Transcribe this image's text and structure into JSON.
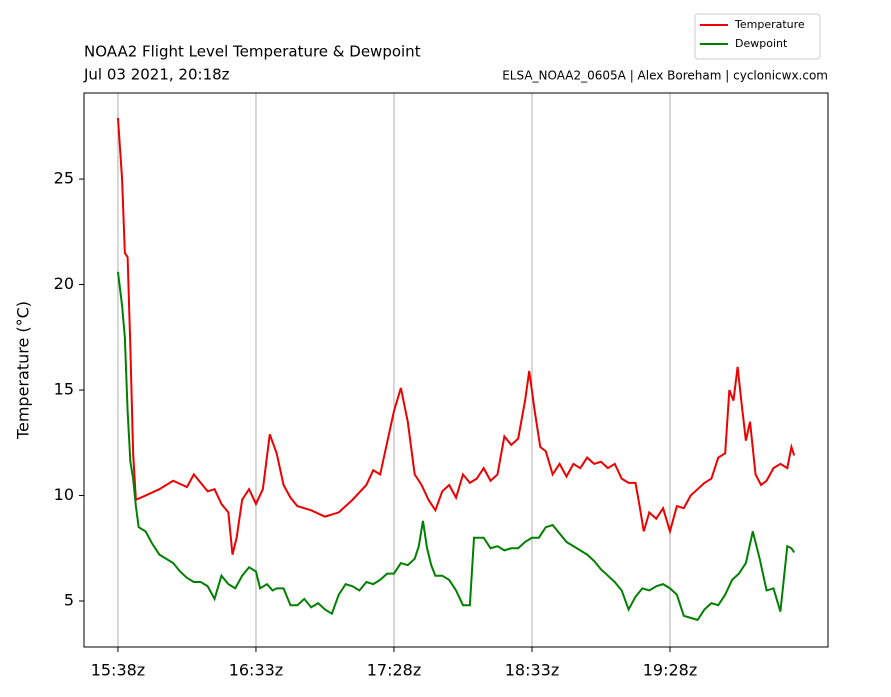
{
  "chart_data": {
    "type": "line",
    "title": "NOAA2 Flight Level Temperature & Dewpoint",
    "subtitle": "Jul 03 2021, 20:18z",
    "annotation": "ELSA_NOAA2_0605A | Alex Boreham | cyclonicwx.com",
    "y_label": "Temperature (°C)",
    "xlim": [
      -24.6,
      514.5
    ],
    "ylim": [
      2.82,
      29.08
    ],
    "xticks": [
      {
        "value": 0,
        "label": "15:38z"
      },
      {
        "value": 100,
        "label": "16:33z"
      },
      {
        "value": 200,
        "label": "17:28z"
      },
      {
        "value": 300,
        "label": "18:33z"
      },
      {
        "value": 400,
        "label": "19:28z"
      }
    ],
    "yticks": [
      5,
      10,
      15,
      20,
      25
    ],
    "grid": "x",
    "legend": "upper right",
    "series": [
      {
        "name": "Temperature",
        "color": "#ee0000",
        "x": [
          0,
          3,
          5,
          7,
          9,
          11,
          13,
          20,
          30,
          40,
          50,
          55,
          60,
          65,
          70,
          75,
          80,
          83,
          86,
          90,
          95,
          100,
          105,
          110,
          115,
          120,
          125,
          130,
          140,
          150,
          160,
          170,
          180,
          185,
          190,
          195,
          200,
          205,
          210,
          215,
          220,
          225,
          230,
          235,
          240,
          245,
          250,
          255,
          260,
          265,
          270,
          275,
          280,
          285,
          290,
          295,
          298,
          302,
          306,
          310,
          315,
          320,
          325,
          330,
          335,
          340,
          345,
          350,
          355,
          360,
          365,
          370,
          375,
          378,
          381,
          385,
          390,
          395,
          400,
          405,
          410,
          415,
          420,
          425,
          430,
          435,
          440,
          443,
          446,
          449,
          452,
          455,
          458,
          462,
          466,
          470,
          475,
          480,
          485,
          488,
          490
        ],
        "values": [
          27.9,
          25.0,
          21.5,
          21.3,
          17,
          12,
          9.8,
          10.0,
          10.3,
          10.7,
          10.4,
          11.0,
          10.6,
          10.2,
          10.3,
          9.6,
          9.2,
          7.2,
          8.0,
          9.8,
          10.3,
          9.6,
          10.3,
          12.9,
          12.0,
          10.5,
          9.9,
          9.5,
          9.3,
          9.0,
          9.2,
          9.8,
          10.5,
          11.2,
          11.0,
          12.5,
          14.0,
          15.1,
          13.5,
          11.0,
          10.5,
          9.8,
          9.3,
          10.2,
          10.5,
          9.9,
          11.0,
          10.6,
          10.8,
          11.3,
          10.7,
          11.0,
          12.8,
          12.4,
          12.7,
          14.5,
          15.9,
          14.0,
          12.3,
          12.1,
          11.0,
          11.5,
          10.9,
          11.5,
          11.3,
          11.8,
          11.5,
          11.6,
          11.3,
          11.5,
          10.8,
          10.6,
          10.6,
          9.5,
          8.3,
          9.2,
          8.9,
          9.4,
          8.3,
          9.5,
          9.4,
          10.0,
          10.3,
          10.6,
          10.8,
          11.8,
          12.0,
          15.0,
          14.5,
          16.1,
          14.3,
          12.6,
          13.5,
          11.0,
          10.5,
          10.7,
          11.3,
          11.5,
          11.3,
          12.3,
          11.9
        ]
      },
      {
        "name": "Dewpoint",
        "color": "#008000",
        "x": [
          0,
          3,
          5,
          7,
          9,
          11,
          13,
          15,
          20,
          25,
          30,
          40,
          45,
          50,
          55,
          60,
          65,
          70,
          75,
          80,
          85,
          90,
          95,
          100,
          103,
          108,
          112,
          115,
          120,
          125,
          130,
          135,
          140,
          145,
          150,
          155,
          160,
          165,
          170,
          175,
          180,
          185,
          190,
          195,
          200,
          205,
          210,
          215,
          218,
          221,
          224,
          227,
          230,
          235,
          240,
          245,
          250,
          255,
          258,
          262,
          265,
          270,
          275,
          280,
          285,
          290,
          295,
          300,
          305,
          310,
          315,
          320,
          325,
          330,
          335,
          340,
          345,
          350,
          355,
          360,
          365,
          370,
          375,
          380,
          385,
          390,
          395,
          400,
          405,
          410,
          415,
          420,
          425,
          430,
          435,
          440,
          445,
          450,
          455,
          460,
          465,
          470,
          475,
          480,
          485,
          488,
          490
        ],
        "values": [
          20.6,
          19,
          17.5,
          14,
          11.6,
          10.8,
          9.5,
          8.5,
          8.3,
          7.7,
          7.2,
          6.8,
          6.4,
          6.1,
          5.9,
          5.9,
          5.7,
          5.1,
          6.2,
          5.8,
          5.6,
          6.2,
          6.6,
          6.4,
          5.6,
          5.8,
          5.5,
          5.6,
          5.6,
          4.8,
          4.8,
          5.1,
          4.7,
          4.9,
          4.6,
          4.4,
          5.3,
          5.8,
          5.7,
          5.5,
          5.9,
          5.8,
          6.0,
          6.3,
          6.3,
          6.8,
          6.7,
          7.0,
          7.6,
          8.8,
          7.5,
          6.7,
          6.2,
          6.2,
          6.0,
          5.5,
          4.8,
          4.8,
          8.0,
          8.0,
          8.0,
          7.5,
          7.6,
          7.4,
          7.5,
          7.5,
          7.8,
          8.0,
          8.0,
          8.5,
          8.6,
          8.2,
          7.8,
          7.6,
          7.4,
          7.2,
          6.9,
          6.5,
          6.2,
          5.9,
          5.5,
          4.6,
          5.2,
          5.6,
          5.5,
          5.7,
          5.8,
          5.6,
          5.3,
          4.3,
          4.2,
          4.1,
          4.6,
          4.9,
          4.8,
          5.3,
          6.0,
          6.3,
          6.8,
          8.3,
          7.0,
          5.5,
          5.6,
          4.5,
          7.6,
          7.5,
          7.3
        ]
      }
    ]
  }
}
